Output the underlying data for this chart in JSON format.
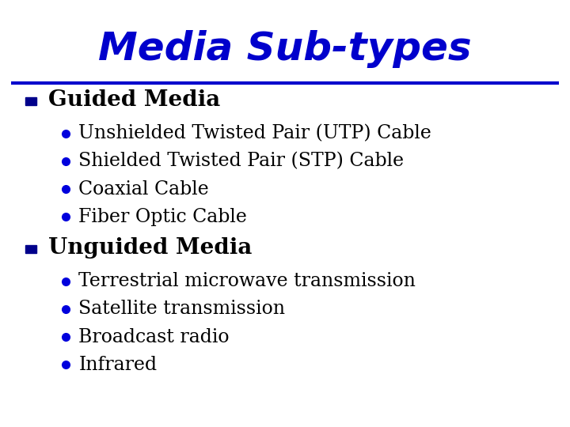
{
  "title": "Media Sub-types",
  "title_color": "#0000CC",
  "title_fontsize": 36,
  "title_fontweight": "bold",
  "title_fontstyle": "italic",
  "divider_color": "#0000CC",
  "bg_color": "#FFFFFF",
  "section_color": "#000000",
  "section_fontsize": 20,
  "section_fontweight": "bold",
  "bullet_color": "#000000",
  "bullet_fontsize": 17,
  "square_color": "#00008B",
  "dot_color": "#0000DD",
  "sections": [
    {
      "heading": "Guided Media",
      "items": [
        "Unshielded Twisted Pair (UTP) Cable",
        "Shielded Twisted Pair (STP) Cable",
        "Coaxial Cable",
        "Fiber Optic Cable"
      ]
    },
    {
      "heading": "Unguided Media",
      "items": [
        "Terrestrial microwave transmission",
        "Satellite transmission",
        "Broadcast radio",
        "Infrared"
      ]
    }
  ]
}
